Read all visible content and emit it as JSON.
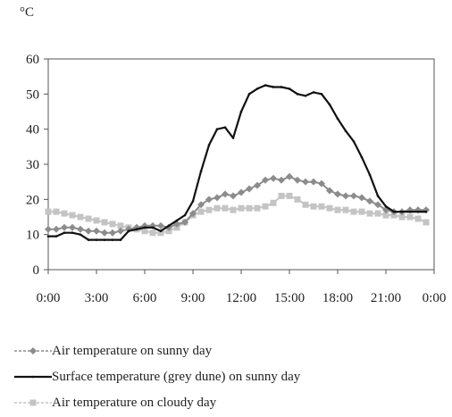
{
  "chart_data": {
    "type": "line",
    "unit_label": "°C",
    "ylim": [
      0,
      60
    ],
    "yticks": [
      "0",
      "10",
      "20",
      "30",
      "40",
      "50",
      "60"
    ],
    "xticks": [
      "0:00",
      "3:00",
      "6:00",
      "9:00",
      "12:00",
      "15:00",
      "18:00",
      "21:00",
      "0:00"
    ],
    "xlim_hours": [
      0,
      24
    ],
    "grid": false,
    "legend_position": "bottom",
    "series": [
      {
        "name": "Air temperature on sunny day",
        "color": "#8c8c8c",
        "line_style": "dashed",
        "marker": "diamond",
        "x": [
          0,
          0.5,
          1,
          1.5,
          2,
          2.5,
          3,
          3.5,
          4,
          4.5,
          5,
          5.5,
          6,
          6.5,
          7,
          7.5,
          8,
          8.5,
          9,
          9.5,
          10,
          10.5,
          11,
          11.5,
          12,
          12.5,
          13,
          13.5,
          14,
          14.5,
          15,
          15.5,
          16,
          16.5,
          17,
          17.5,
          18,
          18.5,
          19,
          19.5,
          20,
          20.5,
          21,
          21.5,
          22,
          22.5,
          23,
          23.5
        ],
        "y": [
          11.5,
          11.5,
          12,
          12,
          11.5,
          11,
          11,
          10.5,
          10.5,
          11,
          11.5,
          12,
          12.5,
          12.5,
          12.5,
          12,
          13,
          13.5,
          16,
          18.5,
          20,
          20.5,
          21.5,
          21,
          22,
          23,
          24,
          25.5,
          26,
          25.5,
          26.5,
          25.5,
          25,
          25,
          24.5,
          22.5,
          21.5,
          21,
          21,
          20.5,
          19.5,
          18.5,
          17,
          16.5,
          16.5,
          17,
          17,
          17
        ]
      },
      {
        "name": "Surface temperature (grey dune) on sunny day",
        "color": "#111111",
        "line_style": "solid",
        "marker": "small",
        "x": [
          0,
          0.5,
          1,
          1.5,
          2,
          2.5,
          3,
          3.5,
          4,
          4.5,
          5,
          5.5,
          6,
          6.5,
          7,
          7.5,
          8,
          8.5,
          9,
          9.5,
          10,
          10.5,
          11,
          11.5,
          12,
          12.5,
          13,
          13.5,
          14,
          14.5,
          15,
          15.5,
          16,
          16.5,
          17,
          17.5,
          18,
          18.5,
          19,
          19.5,
          20,
          20.5,
          21,
          21.5,
          22,
          22.5,
          23,
          23.5
        ],
        "y": [
          9.5,
          9.5,
          10.5,
          10.5,
          10,
          8.5,
          8.5,
          8.5,
          8.5,
          8.5,
          11,
          11.5,
          12,
          12,
          11,
          12.5,
          14,
          15.5,
          19.5,
          28,
          35.5,
          40,
          40.5,
          37.5,
          45,
          50,
          51.5,
          52.5,
          52,
          52,
          51.5,
          50,
          49.5,
          50.5,
          50,
          47,
          43,
          39.5,
          36.5,
          32,
          27,
          21,
          18,
          16.5,
          16.5,
          16.5,
          16.5,
          16.5
        ]
      },
      {
        "name": "Air temperature on cloudy day",
        "color": "#c4c4c4",
        "line_style": "dashed",
        "marker": "square",
        "x": [
          0,
          0.5,
          1,
          1.5,
          2,
          2.5,
          3,
          3.5,
          4,
          4.5,
          5,
          5.5,
          6,
          6.5,
          7,
          7.5,
          8,
          8.5,
          9,
          9.5,
          10,
          10.5,
          11,
          11.5,
          12,
          12.5,
          13,
          13.5,
          14,
          14.5,
          15,
          15.5,
          16,
          16.5,
          17,
          17.5,
          18,
          18.5,
          19,
          19.5,
          20,
          20.5,
          21,
          21.5,
          22,
          22.5,
          23,
          23.5
        ],
        "y": [
          16.5,
          16.5,
          16,
          15.5,
          15,
          14.5,
          14,
          13.5,
          13,
          12.5,
          12,
          11.5,
          11,
          10.5,
          10.5,
          11,
          12,
          13.5,
          15.5,
          16.5,
          17,
          17.5,
          17.5,
          17,
          17.5,
          17.5,
          17.5,
          18,
          19,
          21,
          21,
          20,
          18.5,
          18,
          18,
          17.5,
          17,
          17,
          16.5,
          16.5,
          16,
          16,
          15.5,
          15.5,
          15,
          15,
          14.5,
          13.5
        ]
      }
    ]
  }
}
